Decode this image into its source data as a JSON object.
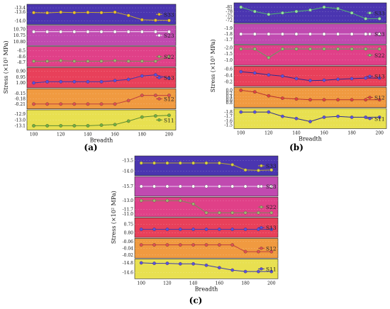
{
  "panel_labels": [
    "(a)",
    "(b)",
    "(c)"
  ],
  "chart_data": [
    {
      "label": "(a)",
      "type": "line",
      "xlabel": "Breadth",
      "ylabel": "Stress (×10² MPa)",
      "xticks": [
        "100",
        "120",
        "140",
        "160",
        "180",
        "200"
      ],
      "xlim": [
        95,
        205
      ],
      "x": [
        100,
        110,
        120,
        130,
        140,
        150,
        160,
        170,
        180,
        190,
        200
      ],
      "series": [
        {
          "name": "S33",
          "color": "#4a35b0",
          "line": "#c8a830",
          "marker": "#e8c030",
          "yticks": [
            "-14.0",
            "-13.6",
            "-13.4"
          ],
          "ylim": [
            -13.3,
            -14.1
          ],
          "values": [
            -13.62,
            -13.63,
            -13.6,
            -13.62,
            -13.61,
            -13.62,
            -13.6,
            -13.75,
            -13.95,
            -13.97,
            -13.98
          ]
        },
        {
          "name": "S23",
          "color": "#c04ab0",
          "line": "#f8e8f8",
          "marker": "#ffffff",
          "yticks": [
            "10.80",
            "10.75",
            "10.70"
          ],
          "ylim": [
            10.68,
            10.82
          ],
          "values": [
            10.72,
            10.72,
            10.72,
            10.72,
            10.72,
            10.72,
            10.72,
            10.72,
            10.72,
            10.72,
            10.72
          ]
        },
        {
          "name": "S22",
          "color": "#e04088",
          "line": "#7a8a5a",
          "marker": "#a0b070",
          "yticks": [
            "-8.7",
            "-8.6",
            "-8.5"
          ],
          "ylim": [
            -8.45,
            -8.75
          ],
          "values": [
            -8.68,
            -8.68,
            -8.67,
            -8.68,
            -8.68,
            -8.68,
            -8.67,
            -8.68,
            -8.68,
            -8.68,
            -8.6
          ]
        },
        {
          "name": "S13",
          "color": "#e8405a",
          "line": "#3a3ab0",
          "marker": "#5a50e0",
          "yticks": [
            "1.00",
            "0.95",
            "0.90"
          ],
          "ylim": [
            0.88,
            1.03
          ],
          "values": [
            1.0,
            0.99,
            0.99,
            0.99,
            0.99,
            0.99,
            0.98,
            0.97,
            0.94,
            0.93,
            0.96
          ]
        },
        {
          "name": "S12",
          "color": "#f09a40",
          "line": "#c04040",
          "marker": "#e05050",
          "yticks": [
            "-0.21",
            "-0.18",
            "-0.15"
          ],
          "ylim": [
            -0.13,
            -0.23
          ],
          "values": [
            -0.21,
            -0.21,
            -0.21,
            -0.21,
            -0.21,
            -0.21,
            -0.21,
            -0.19,
            -0.16,
            -0.16,
            -0.16
          ]
        },
        {
          "name": "S11",
          "color": "#e8e050",
          "line": "#5a8a30",
          "marker": "#70b040",
          "yticks": [
            "-13.1",
            "-13.0",
            "-12.9"
          ],
          "ylim": [
            -12.85,
            -13.15
          ],
          "values": [
            -13.1,
            -13.1,
            -13.1,
            -13.1,
            -13.1,
            -13.09,
            -13.08,
            -13.02,
            -12.95,
            -12.93,
            -12.92
          ]
        }
      ]
    },
    {
      "label": "(b)",
      "type": "line",
      "xlabel": "Breadth",
      "ylabel": "Stress (×10³ MPa)",
      "xticks": [
        "100",
        "120",
        "140",
        "160",
        "180",
        "200"
      ],
      "xlim": [
        95,
        205
      ],
      "x": [
        100,
        110,
        120,
        130,
        140,
        150,
        160,
        170,
        180,
        190,
        200
      ],
      "series": [
        {
          "name": "S33",
          "color": "#4a35b0",
          "line": "#50b870",
          "marker": "#90e0a0",
          "yticks": [
            "-81",
            "-78",
            "-75",
            "-72"
          ],
          "ylim": [
            -83,
            -71
          ],
          "values": [
            -81,
            -78,
            -76,
            -77,
            -78,
            -79,
            -81,
            -80,
            -77,
            -73,
            -73
          ]
        },
        {
          "name": "S23",
          "color": "#c04ab0",
          "line": "#f0d0f0",
          "marker": "#ffffff",
          "yticks": [
            "-1.9",
            "-1.8",
            "-1.7"
          ],
          "ylim": [
            -1.95,
            -1.65
          ],
          "values": [
            -1.8,
            -1.8,
            -1.8,
            -1.8,
            -1.8,
            -1.8,
            -1.8,
            -1.8,
            -1.8,
            -1.8,
            -1.8
          ]
        },
        {
          "name": "S22",
          "color": "#e04088",
          "line": "#60a060",
          "marker": "#90c070",
          "yticks": [
            "-2.0",
            "-1.5",
            "-1.0"
          ],
          "ylim": [
            -2.1,
            -0.7
          ],
          "values": [
            -1.9,
            -1.9,
            -1.2,
            -1.9,
            -1.9,
            -1.9,
            -1.9,
            -1.9,
            -1.9,
            -1.9,
            -1.9
          ]
        },
        {
          "name": "S13",
          "color": "#e8405a",
          "line": "#2a2a90",
          "marker": "#5a50e0",
          "yticks": [
            "-0.6",
            "-0.4",
            "-0.2"
          ],
          "ylim": [
            -0.65,
            -0.1
          ],
          "values": [
            -0.52,
            -0.48,
            -0.42,
            -0.38,
            -0.3,
            -0.24,
            -0.25,
            -0.28,
            -0.3,
            -0.32,
            -0.32
          ]
        },
        {
          "name": "S12",
          "color": "#f09a40",
          "line": "#b83030",
          "marker": "#e04040",
          "yticks": [
            "0.0",
            "0.2",
            "0.4",
            "0.6",
            "0.8"
          ],
          "ylim": [
            -0.1,
            1.0
          ],
          "values": [
            0.0,
            0.1,
            0.35,
            0.5,
            0.55,
            0.6,
            0.6,
            0.6,
            0.6,
            0.6,
            0.6
          ]
        },
        {
          "name": "S11",
          "color": "#e8e050",
          "line": "#2a2a90",
          "marker": "#5a50e0",
          "yticks": [
            "-1.8",
            "-1.7",
            "-1.6",
            "-1.5"
          ],
          "ylim": [
            -1.85,
            -1.45
          ],
          "values": [
            -1.8,
            -1.8,
            -1.8,
            -1.7,
            -1.65,
            -1.58,
            -1.68,
            -1.7,
            -1.68,
            -1.68,
            -1.68
          ]
        }
      ]
    },
    {
      "label": "(c)",
      "type": "line",
      "xlabel": "Breadth",
      "ylabel": "Stress (×10² MPa)",
      "xticks": [
        "100",
        "120",
        "140",
        "160",
        "180",
        "200"
      ],
      "xlim": [
        95,
        205
      ],
      "x": [
        100,
        110,
        120,
        130,
        140,
        150,
        160,
        170,
        180,
        190,
        200
      ],
      "series": [
        {
          "name": "S33",
          "color": "#4a35b0",
          "line": "#b8a830",
          "marker": "#d8d040",
          "yticks": [
            "-14.0",
            "-13.5"
          ],
          "ylim": [
            -13.35,
            -14.15
          ],
          "values": [
            -13.62,
            -13.62,
            -13.62,
            -13.62,
            -13.62,
            -13.62,
            -13.62,
            -13.7,
            -13.95,
            -13.97,
            -13.95
          ]
        },
        {
          "name": "S23",
          "color": "#c04ab0",
          "line": "#f0d0f0",
          "marker": "#ffffff",
          "yticks": [
            "-15.7"
          ],
          "ylim": [
            -15.75,
            -15.65
          ],
          "values": [
            -15.7,
            -15.7,
            -15.7,
            -15.7,
            -15.7,
            -15.7,
            -15.7,
            -15.7,
            -15.7,
            -15.7,
            -15.7
          ]
        },
        {
          "name": "S22",
          "color": "#e04088",
          "line": "#7a8a5a",
          "marker": "#a0b070",
          "yticks": [
            "-13.0",
            "-11.7",
            "-11.0"
          ],
          "ylim": [
            -13.3,
            -10.8
          ],
          "values": [
            -13.0,
            -13.0,
            -13.0,
            -13.0,
            -12.5,
            -11.2,
            -11.2,
            -11.2,
            -11.2,
            -11.2,
            -11.2
          ]
        },
        {
          "name": "S13",
          "color": "#e8405a",
          "line": "#3a3ab0",
          "marker": "#5a50e0",
          "yticks": [
            "0.80",
            "0.75"
          ],
          "ylim": [
            0.72,
            0.82
          ],
          "values": [
            0.78,
            0.78,
            0.78,
            0.78,
            0.78,
            0.78,
            0.78,
            0.78,
            0.78,
            0.78,
            0.78
          ]
        },
        {
          "name": "S12",
          "color": "#f09a40",
          "line": "#c04040",
          "marker": "#e05050",
          "yticks": [
            "-0.06",
            "-0.04",
            "-0.02"
          ],
          "ylim": [
            -0.065,
            -0.015
          ],
          "values": [
            -0.05,
            -0.05,
            -0.05,
            -0.05,
            -0.05,
            -0.05,
            -0.05,
            -0.05,
            -0.03,
            -0.03,
            -0.03
          ]
        },
        {
          "name": "S11",
          "color": "#e8e050",
          "line": "#3a3ab0",
          "marker": "#5a50e0",
          "yticks": [
            "-14.6",
            "-14.8"
          ],
          "ylim": [
            -14.85,
            -14.5
          ],
          "values": [
            -14.8,
            -14.79,
            -14.79,
            -14.78,
            -14.78,
            -14.75,
            -14.7,
            -14.65,
            -14.62,
            -14.62,
            -14.62
          ]
        }
      ]
    }
  ]
}
